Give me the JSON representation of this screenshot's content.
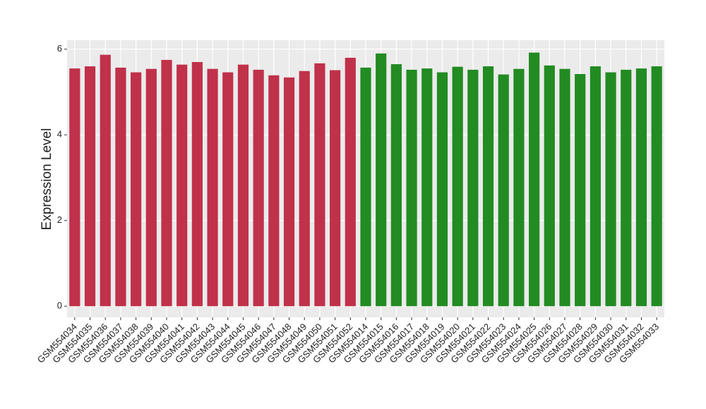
{
  "chart_data": {
    "type": "bar",
    "y_label": "Expression Level",
    "categories": [
      "GSM554034",
      "GSM554035",
      "GSM554036",
      "GSM554037",
      "GSM554038",
      "GSM554039",
      "GSM554040",
      "GSM554041",
      "GSM554042",
      "GSM554043",
      "GSM554044",
      "GSM554045",
      "GSM554046",
      "GSM554047",
      "GSM554048",
      "GSM554049",
      "GSM554050",
      "GSM554051",
      "GSM554052",
      "GSM554014",
      "GSM554015",
      "GSM554016",
      "GSM554017",
      "GSM554018",
      "GSM554019",
      "GSM554020",
      "GSM554021",
      "GSM554022",
      "GSM554023",
      "GSM554024",
      "GSM554025",
      "GSM554026",
      "GSM554027",
      "GSM554028",
      "GSM554029",
      "GSM554030",
      "GSM554031",
      "GSM554032",
      "GSM554033"
    ],
    "values": [
      5.55,
      5.6,
      5.87,
      5.57,
      5.46,
      5.54,
      5.75,
      5.64,
      5.7,
      5.54,
      5.46,
      5.64,
      5.52,
      5.39,
      5.34,
      5.49,
      5.67,
      5.51,
      5.8,
      5.57,
      5.9,
      5.65,
      5.52,
      5.55,
      5.46,
      5.59,
      5.52,
      5.6,
      5.41,
      5.54,
      5.92,
      5.62,
      5.54,
      5.42,
      5.6,
      5.46,
      5.52,
      5.55,
      5.6
    ],
    "colors": [
      "#c0314a",
      "#c0314a",
      "#c0314a",
      "#c0314a",
      "#c0314a",
      "#c0314a",
      "#c0314a",
      "#c0314a",
      "#c0314a",
      "#c0314a",
      "#c0314a",
      "#c0314a",
      "#c0314a",
      "#c0314a",
      "#c0314a",
      "#c0314a",
      "#c0314a",
      "#c0314a",
      "#c0314a",
      "#228b22",
      "#228b22",
      "#228b22",
      "#228b22",
      "#228b22",
      "#228b22",
      "#228b22",
      "#228b22",
      "#228b22",
      "#228b22",
      "#228b22",
      "#228b22",
      "#228b22",
      "#228b22",
      "#228b22",
      "#228b22",
      "#228b22",
      "#228b22",
      "#228b22",
      "#228b22"
    ],
    "ylim": [
      -0.26,
      6.21
    ],
    "yticks": [
      0,
      2,
      4,
      6
    ],
    "grid": true
  }
}
